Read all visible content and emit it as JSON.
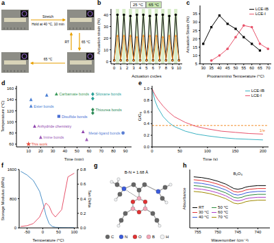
{
  "chart_data": [
    {
      "type": "image",
      "title": "a",
      "annotations": [
        "Stretch",
        "Hold at 40 °C, 10 min",
        "RT",
        "65 °C",
        "65 °C"
      ]
    },
    {
      "type": "line",
      "title": "b",
      "xlabel": "Actuation cycles",
      "ylabel": "Actuation strain (%)",
      "annotations": [
        "25 °C",
        "65 °C"
      ],
      "x": [
        0,
        0.5,
        1,
        1.5,
        2,
        2.5,
        3,
        3.5,
        4,
        4.5,
        5,
        5.5,
        6,
        6.5,
        7,
        7.5,
        8,
        8.5,
        9,
        9.5,
        10
      ],
      "xlim": [
        -0.5,
        10.5
      ],
      "xticks": [
        0,
        1,
        2,
        3,
        4,
        5,
        6,
        7,
        8,
        9,
        10
      ],
      "ylim": [
        -2,
        45
      ],
      "yticks": [
        0,
        10,
        20,
        30,
        40
      ],
      "series": [
        {
          "color": "#000000",
          "marker": "circle",
          "values": [
            1,
            40,
            1,
            40,
            1,
            39,
            1,
            40,
            1,
            40,
            1,
            39,
            1,
            40,
            1,
            40,
            1,
            39,
            1,
            40,
            1
          ]
        },
        {
          "color": "#f28c28",
          "marker": "triangle",
          "values": [
            1,
            22,
            1,
            22,
            1,
            22,
            1,
            21,
            1,
            22,
            1,
            22,
            1,
            22,
            1,
            21,
            1,
            22,
            1,
            22,
            1
          ]
        }
      ]
    },
    {
      "type": "line",
      "title": "c",
      "xlabel": "Programming Temperature (°C)",
      "ylabel": "Actuation Strain (%)",
      "x": [
        30,
        35,
        40,
        45,
        50,
        55,
        60,
        65,
        70
      ],
      "xlim": [
        28,
        72
      ],
      "xticks": [
        30,
        35,
        40,
        45,
        50,
        55,
        60,
        65,
        70
      ],
      "ylim": [
        5,
        40
      ],
      "yticks": [
        5,
        10,
        15,
        20,
        25,
        30,
        35
      ],
      "legend": "upper right",
      "series": [
        {
          "name": "LCE-IB",
          "color": "#000000",
          "marker": "square",
          "values": [
            17,
            27,
            34,
            29,
            26,
            21,
            17,
            13,
            null
          ]
        },
        {
          "name": "LCE-I",
          "color": "#e8536b",
          "marker": "circle",
          "values": [
            null,
            7,
            10,
            14,
            21,
            28,
            27,
            17,
            14
          ]
        }
      ]
    },
    {
      "type": "scatter",
      "title": "d",
      "xlabel": "Time (min)",
      "ylabel": "Temperature (°C)",
      "xlim": [
        0,
        95
      ],
      "xticks": [
        10,
        20,
        30,
        40,
        50,
        60,
        70,
        80,
        90
      ],
      "ylim": [
        55,
        165
      ],
      "yticks": [
        60,
        80,
        100,
        120,
        140,
        160
      ],
      "series": [
        {
          "name": "Ester bonds",
          "color": "#4a7fd4",
          "marker": "triangle",
          "x": [
            12,
            12,
            25
          ],
          "values": [
            128,
            140,
            148
          ]
        },
        {
          "name": "Carbamate bonds",
          "color": "#3a9a5b",
          "marker": "triangle",
          "x": [
            33
          ],
          "values": [
            150
          ]
        },
        {
          "name": "Siloxane bonds",
          "color": "#2aa198",
          "marker": "diamond",
          "x": [
            63,
            63
          ],
          "values": [
            150,
            142
          ]
        },
        {
          "name": "Disulfide bonds",
          "color": "#4a6fd4",
          "marker": "square",
          "x": [
            35
          ],
          "values": [
            110
          ]
        },
        {
          "name": "Thiourea bonds",
          "color": "#2e8b57",
          "marker": "diamond",
          "x": [
            63,
            63
          ],
          "values": [
            122,
            116
          ]
        },
        {
          "name": "Anhydride chemistry",
          "color": "#8e44ad",
          "marker": "triangle",
          "x": [
            15,
            55
          ],
          "values": [
            92,
            82
          ]
        },
        {
          "name": "Metal-ligand bonds",
          "color": "#5b7fd4",
          "marker": "circle",
          "x": [
            88
          ],
          "values": [
            80
          ]
        },
        {
          "name": "Imine bonds",
          "color": "#9b59b6",
          "marker": "triangle",
          "x": [
            20,
            58
          ],
          "values": [
            72,
            68
          ]
        },
        {
          "name": "This work",
          "color": "#e74c3c",
          "marker": "star",
          "x": [
            10
          ],
          "values": [
            60
          ]
        }
      ]
    },
    {
      "type": "line",
      "title": "e",
      "xlabel": "Time (s)",
      "ylabel": "G/G₀",
      "x": [
        0,
        5,
        10,
        20,
        30,
        40,
        60,
        80,
        100,
        125,
        150,
        175,
        200
      ],
      "xlim": [
        0,
        210
      ],
      "xticks": [
        0,
        50,
        100,
        150,
        200
      ],
      "ylim": [
        0,
        1.05
      ],
      "yticks": [
        {
          "value": 0,
          "label": "0.0"
        },
        0.2,
        0.4,
        0.6,
        0.8,
        {
          "value": 1,
          "label": "1.0"
        }
      ],
      "legend": "upper right",
      "annotations": [
        {
          "text": "1/e",
          "y": 0.368
        }
      ],
      "series": [
        {
          "name": "LCE-IB",
          "color": "#3bb3c3",
          "values": [
            1,
            0.8,
            0.68,
            0.52,
            0.42,
            0.35,
            0.27,
            0.22,
            0.19,
            0.16,
            0.14,
            0.13,
            0.12
          ]
        },
        {
          "name": "LCE-I",
          "color": "#e8536b",
          "values": [
            1,
            0.9,
            0.82,
            0.7,
            0.6,
            0.52,
            0.42,
            0.35,
            0.31,
            0.27,
            0.25,
            0.23,
            0.22
          ]
        }
      ]
    },
    {
      "type": "line",
      "title": "f",
      "xlabel": "Temperature (°C)",
      "ylabel": "Storage Modulus (MPa)",
      "y2label": "Tan Delta",
      "x": [
        -70,
        -50,
        -30,
        -10,
        0,
        10,
        20,
        30,
        40,
        60,
        80,
        100
      ],
      "xlim": [
        -75,
        110
      ],
      "xticks": [
        -50,
        0,
        50,
        100
      ],
      "ylim": [
        0,
        1600
      ],
      "yticks": [
        0,
        800,
        1600
      ],
      "y2lim": [
        0,
        0.8
      ],
      "y2ticks": [
        {
          "value": 0,
          "label": "0.0"
        },
        0.2,
        0.4,
        0.6,
        0.8
      ],
      "series": [
        {
          "color": "#4a90c8",
          "values": [
            1550,
            1450,
            1300,
            1000,
            700,
            350,
            120,
            40,
            15,
            8,
            6,
            5
          ]
        },
        {
          "color": "#e8536b",
          "axis": "y2",
          "values": [
            0.02,
            0.03,
            0.06,
            0.15,
            0.25,
            0.34,
            0.3,
            0.2,
            0.15,
            0.25,
            0.7,
            0.75
          ]
        }
      ]
    },
    {
      "type": "molecule",
      "title": "g",
      "annotations": [
        "B-N = 1.68 Å"
      ],
      "categories": [
        "C",
        "N",
        "O",
        "B",
        "H"
      ],
      "colors": [
        "#666666",
        "#3b5bdb",
        "#e03131",
        "#f4a6b8",
        "#f1f3f5"
      ]
    },
    {
      "type": "line",
      "title": "h",
      "xlabel": "Wavenumber (cm⁻¹)",
      "ylabel": "Absorbance",
      "tick_labels": "x",
      "x": [
        756,
        754,
        752,
        750,
        748,
        747,
        746,
        745,
        744,
        743,
        742,
        740,
        738
      ],
      "xlim": [
        757,
        737
      ],
      "xticks": [
        755,
        750,
        745,
        740
      ],
      "ylim": [
        0.1,
        0.9
      ],
      "legend": "lower left",
      "annotations": [
        {
          "text": "B₂O₃",
          "x": 745,
          "y": 0.78
        }
      ],
      "series": [
        {
          "name": "RT",
          "color": "#000000",
          "values": [
            0.8,
            0.79,
            0.77,
            0.74,
            0.7,
            0.67,
            0.64,
            0.63,
            0.64,
            0.66,
            0.67,
            0.68,
            0.68
          ]
        },
        {
          "name": "30 °C",
          "color": "#e03131",
          "values": [
            0.76,
            0.75,
            0.73,
            0.7,
            0.66,
            0.63,
            0.6,
            0.59,
            0.6,
            0.62,
            0.63,
            0.64,
            0.64
          ]
        },
        {
          "name": "40 °C",
          "color": "#3b5bdb",
          "values": [
            0.72,
            0.71,
            0.69,
            0.66,
            0.62,
            0.59,
            0.56,
            0.55,
            0.56,
            0.58,
            0.59,
            0.6,
            0.6
          ]
        },
        {
          "name": "50 °C",
          "color": "#2b8a3e",
          "values": [
            0.68,
            0.67,
            0.65,
            0.62,
            0.58,
            0.55,
            0.52,
            0.51,
            0.52,
            0.54,
            0.55,
            0.56,
            0.56
          ]
        },
        {
          "name": "60 °C",
          "color": "#ae3ec9",
          "values": [
            0.64,
            0.63,
            0.61,
            0.58,
            0.54,
            0.51,
            0.48,
            0.47,
            0.48,
            0.5,
            0.51,
            0.52,
            0.52
          ]
        },
        {
          "name": "70 °C",
          "color": "#a08a00",
          "values": [
            0.6,
            0.59,
            0.57,
            0.54,
            0.5,
            0.47,
            0.44,
            0.43,
            0.44,
            0.46,
            0.47,
            0.48,
            0.48
          ]
        }
      ]
    }
  ]
}
